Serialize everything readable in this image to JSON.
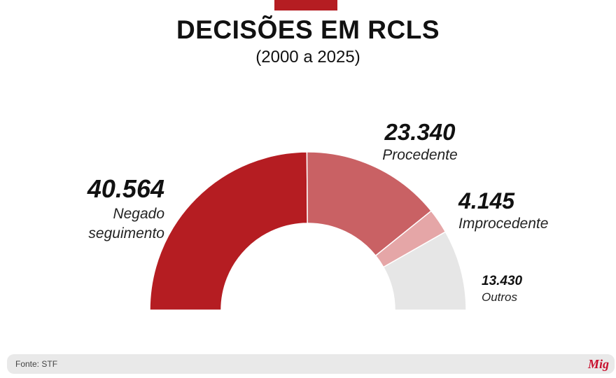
{
  "header": {
    "title": "DECISÕES EM RCLS",
    "subtitle": "(2000 a 2025)"
  },
  "footer": {
    "source": "Fonte: STF",
    "logo_text": "Mig"
  },
  "colors": {
    "accent": "#b51d22",
    "series": [
      "#b51d22",
      "#c96164",
      "#e5a6a7",
      "#e6e6e6"
    ]
  },
  "chart_data": {
    "type": "pie",
    "variant": "half-donut",
    "title": "DECISÕES EM RCLS",
    "subtitle": "(2000 a 2025)",
    "categories": [
      "Negado seguimento",
      "Procedente",
      "Improcedente",
      "Outros"
    ],
    "values": [
      40564,
      23340,
      4145,
      13430
    ],
    "value_labels": [
      "40.564",
      "23.340",
      "4.145",
      "13.430"
    ],
    "label_lines": [
      [
        "Negado",
        "seguimento"
      ],
      [
        "Procedente"
      ],
      [
        "Improcedente"
      ],
      [
        "Outros"
      ]
    ],
    "colors": [
      "#b51d22",
      "#c96164",
      "#e5a6a7",
      "#e6e6e6"
    ]
  }
}
